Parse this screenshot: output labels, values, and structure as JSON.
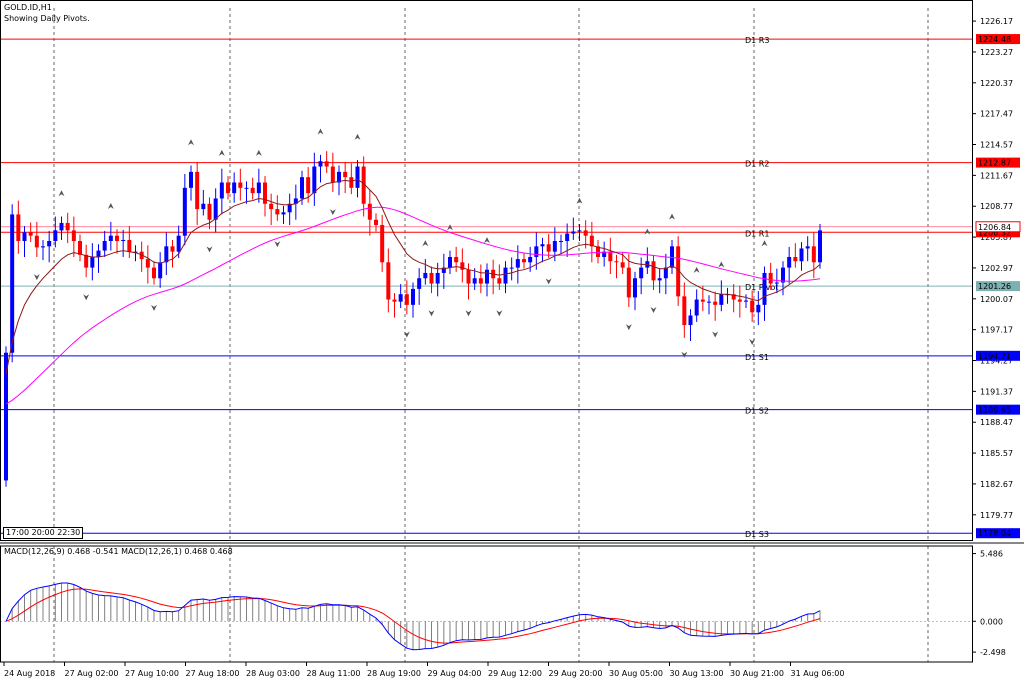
{
  "symbol_label": "GOLD.ID,H1",
  "subtitle": "Showing Daily Pivots.",
  "macd_label": "MACD(12,26,9) 0.468 -0.541 MACD(12,26,1) 0.468 0.468",
  "time_box_label": "17:00 20:00 22:30",
  "colors": {
    "background": "#ffffff",
    "bull": "#0000ff",
    "bear": "#ff0000",
    "ma_fast": "#8b1a1a",
    "ma_slow": "#ff00ff",
    "pivot_r": "#ff0000",
    "pivot_s": "#0000ff",
    "pivot_p": "#7fb0b0",
    "macd_line": "#0000ff",
    "signal_line": "#ff0000",
    "histogram": "#808080"
  },
  "price_axis": {
    "ticks": [
      "1226.17",
      "1223.27",
      "1220.37",
      "1217.47",
      "1214.57",
      "1211.67",
      "1208.77",
      "1205.87",
      "1202.97",
      "1200.07",
      "1197.17",
      "1194.27",
      "1191.37",
      "1188.47",
      "1185.57",
      "1182.67",
      "1179.77"
    ],
    "range": [
      1177.4,
      1227.4
    ]
  },
  "macd_axis": {
    "ticks": [
      "5.486",
      "0.000",
      "-2.498"
    ],
    "range": [
      -3.3,
      6.1
    ]
  },
  "time_axis": [
    "24 Aug 2018",
    "27 Aug 02:00",
    "27 Aug 10:00",
    "27 Aug 18:00",
    "28 Aug 03:00",
    "28 Aug 11:00",
    "28 Aug 19:00",
    "29 Aug 04:00",
    "29 Aug 12:00",
    "29 Aug 20:00",
    "30 Aug 05:00",
    "30 Aug 13:00",
    "30 Aug 21:00",
    "31 Aug 06:00"
  ],
  "pivots": [
    {
      "name": "D1 R3",
      "price": 1224.48,
      "label": "1224.48",
      "kind": "r"
    },
    {
      "name": "D1 R2",
      "price": 1212.87,
      "label": "1212.87",
      "kind": "r"
    },
    {
      "name": "D1 R1",
      "price": 1206.32,
      "label": "1206.32",
      "kind": "r"
    },
    {
      "name": "D1 Pivot",
      "price": 1201.26,
      "label": "1201.26",
      "kind": "p"
    },
    {
      "name": "D1 S1",
      "price": 1194.71,
      "label": "1194.71",
      "kind": "s"
    },
    {
      "name": "D1 S2",
      "price": 1189.65,
      "label": "1189.65",
      "kind": "s"
    },
    {
      "name": "D1 S3",
      "price": 1178.04,
      "label": "1178.04",
      "kind": "s"
    }
  ],
  "current_price": {
    "price": 1206.84,
    "label": "1206.84"
  },
  "chart_data": {
    "type": "candlestick",
    "title": "GOLD.ID,H1",
    "series": [
      {
        "name": "price",
        "values": [
          1195.0,
          1208.0,
          1205.5,
          1206.3,
          1206.0,
          1204.9,
          1205.0,
          1205.5,
          1206.5,
          1207.2,
          1206.5,
          1205.5,
          1204.2,
          1203.0,
          1204.0,
          1204.6,
          1205.5,
          1206.0,
          1205.5,
          1205.6,
          1204.5,
          1204.5,
          1203.8,
          1203.0,
          1202.0,
          1203.5,
          1205.0,
          1204.5,
          1206.0,
          1210.5,
          1212.0,
          1208.5,
          1209.0,
          1207.5,
          1209.5,
          1211.0,
          1210.0,
          1211.0,
          1210.5,
          1210.5,
          1210.0,
          1211.0,
          1209.0,
          1208.5,
          1208.0,
          1208.2,
          1209.0,
          1209.5,
          1211.5,
          1210.0,
          1212.5,
          1213.0,
          1212.5,
          1211.0,
          1212.0,
          1211.5,
          1210.5,
          1212.5,
          1209.0,
          1207.5,
          1207.0,
          1203.5,
          1200.0,
          1199.8,
          1200.5,
          1199.5,
          1201.0,
          1202.0,
          1202.5,
          1201.5,
          1202.5,
          1203.0,
          1204.0,
          1203.5,
          1202.8,
          1201.5,
          1202.0,
          1201.5,
          1202.8,
          1202.0,
          1201.5,
          1203.0,
          1203.0,
          1203.8,
          1203.5,
          1204.0,
          1205.0,
          1205.2,
          1204.5,
          1205.5,
          1205.5,
          1206.2,
          1206.4,
          1206.5,
          1206.0,
          1205.0,
          1204.0,
          1204.5,
          1203.6,
          1203.5,
          1203.0,
          1200.2,
          1202.0,
          1203.0,
          1203.6,
          1201.8,
          1202.0,
          1203.0,
          1205.0,
          1200.3,
          1197.6,
          1198.5,
          1200.0,
          1199.8,
          1199.8,
          1199.5,
          1200.5,
          1200.5,
          1200.0,
          1199.8,
          1199.9,
          1198.8,
          1199.5,
          1202.5,
          1201.5,
          1201.6,
          1203.0,
          1204.0,
          1203.6,
          1204.8,
          1205.0,
          1203.5,
          1206.5
        ]
      }
    ],
    "ma_fast": [
      1193,
      1196,
      1198,
      1199.5,
      1200.5,
      1201.3,
      1202,
      1202.6,
      1203.2,
      1203.8,
      1204.2,
      1204.4,
      1204.3,
      1204.1,
      1204.0,
      1204.0,
      1204.1,
      1204.3,
      1204.5,
      1204.6,
      1204.5,
      1204.4,
      1204.2,
      1203.9,
      1203.5,
      1203.4,
      1203.6,
      1203.8,
      1204.3,
      1205.3,
      1206.3,
      1206.7,
      1207.0,
      1207.2,
      1207.6,
      1208.1,
      1208.4,
      1208.8,
      1209.0,
      1209.2,
      1209.3,
      1209.5,
      1209.4,
      1209.2,
      1209.0,
      1208.9,
      1208.9,
      1209.0,
      1209.4,
      1209.6,
      1210.1,
      1210.6,
      1210.9,
      1211.0,
      1211.1,
      1211.2,
      1211.1,
      1211.3,
      1210.9,
      1210.3,
      1209.7,
      1208.6,
      1207.3,
      1206.1,
      1205.2,
      1204.3,
      1203.8,
      1203.5,
      1203.3,
      1203.0,
      1202.9,
      1202.9,
      1203.0,
      1203.1,
      1203.0,
      1202.8,
      1202.7,
      1202.5,
      1202.5,
      1202.4,
      1202.3,
      1202.4,
      1202.5,
      1202.7,
      1202.8,
      1203.0,
      1203.3,
      1203.6,
      1203.8,
      1204.1,
      1204.3,
      1204.6,
      1204.9,
      1205.1,
      1205.2,
      1205.1,
      1204.9,
      1204.8,
      1204.6,
      1204.4,
      1204.2,
      1203.6,
      1203.4,
      1203.3,
      1203.3,
      1203.1,
      1202.9,
      1202.9,
      1203.2,
      1202.8,
      1202.1,
      1201.6,
      1201.3,
      1201.0,
      1200.8,
      1200.6,
      1200.5,
      1200.5,
      1200.4,
      1200.3,
      1200.2,
      1200.0,
      1199.9,
      1200.3,
      1200.5,
      1200.7,
      1201.0,
      1201.4,
      1201.8,
      1202.3,
      1202.6,
      1202.8,
      1203.3
    ]
  }
}
